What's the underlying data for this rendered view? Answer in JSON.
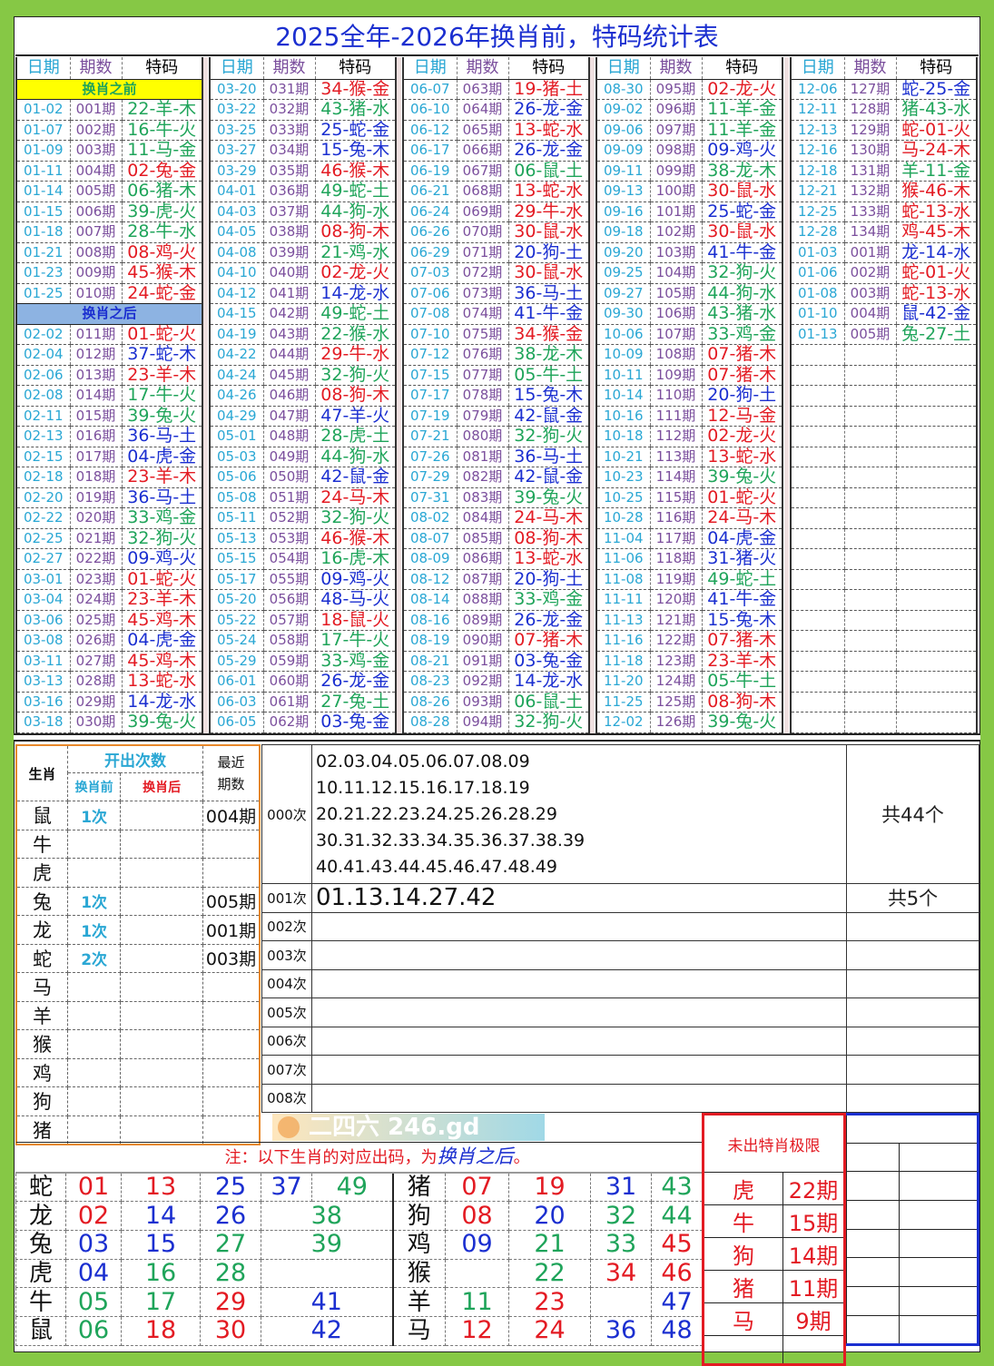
{
  "title": "2025全年-2026年换肖前，特码统计表",
  "headers": {
    "date": "日期",
    "period": "期数",
    "code": "特码"
  },
  "colors": {
    "red": "#e31b23",
    "blue": "#1b2fd0",
    "green": "#1fa45a",
    "banner_before": "#ffff00",
    "banner_after": "#8db3e2"
  },
  "groups": [
    [
      {
        "banner": "换肖之前",
        "type": "before"
      },
      [
        "01-02",
        "001期",
        "22-羊-木"
      ],
      [
        "01-07",
        "002期",
        "16-牛-火"
      ],
      [
        "01-09",
        "003期",
        "11-马-金"
      ],
      [
        "01-11",
        "004期",
        "02-兔-金"
      ],
      [
        "01-14",
        "005期",
        "06-猪-木"
      ],
      [
        "01-15",
        "006期",
        "39-虎-火"
      ],
      [
        "01-18",
        "007期",
        "28-牛-水"
      ],
      [
        "01-21",
        "008期",
        "08-鸡-火"
      ],
      [
        "01-23",
        "009期",
        "45-猴-木"
      ],
      [
        "01-25",
        "010期",
        "24-蛇-金"
      ],
      {
        "banner": "换肖之后",
        "type": "after"
      },
      [
        "02-02",
        "011期",
        "01-蛇-火"
      ],
      [
        "02-04",
        "012期",
        "37-蛇-木"
      ],
      [
        "02-06",
        "013期",
        "23-羊-木"
      ],
      [
        "02-08",
        "014期",
        "17-牛-火"
      ],
      [
        "02-11",
        "015期",
        "39-兔-火"
      ],
      [
        "02-13",
        "016期",
        "36-马-土"
      ],
      [
        "02-15",
        "017期",
        "04-虎-金"
      ],
      [
        "02-18",
        "018期",
        "23-羊-木"
      ],
      [
        "02-20",
        "019期",
        "36-马-土"
      ],
      [
        "02-22",
        "020期",
        "33-鸡-金"
      ],
      [
        "02-25",
        "021期",
        "32-狗-火"
      ],
      [
        "02-27",
        "022期",
        "09-鸡-火"
      ],
      [
        "03-01",
        "023期",
        "01-蛇-火"
      ],
      [
        "03-04",
        "024期",
        "23-羊-木"
      ],
      [
        "03-06",
        "025期",
        "45-鸡-木"
      ],
      [
        "03-08",
        "026期",
        "04-虎-金"
      ],
      [
        "03-11",
        "027期",
        "45-鸡-木"
      ],
      [
        "03-13",
        "028期",
        "13-蛇-水"
      ],
      [
        "03-16",
        "029期",
        "14-龙-水"
      ],
      [
        "03-18",
        "030期",
        "39-兔-火"
      ]
    ],
    [
      [
        "03-20",
        "031期",
        "34-猴-金"
      ],
      [
        "03-22",
        "032期",
        "43-猪-水"
      ],
      [
        "03-25",
        "033期",
        "25-蛇-金"
      ],
      [
        "03-27",
        "034期",
        "15-兔-木"
      ],
      [
        "03-29",
        "035期",
        "46-猴-木"
      ],
      [
        "04-01",
        "036期",
        "49-蛇-土"
      ],
      [
        "04-03",
        "037期",
        "44-狗-水"
      ],
      [
        "04-05",
        "038期",
        "08-狗-木"
      ],
      [
        "04-08",
        "039期",
        "21-鸡-水"
      ],
      [
        "04-10",
        "040期",
        "02-龙-火"
      ],
      [
        "04-12",
        "041期",
        "14-龙-水"
      ],
      [
        "04-15",
        "042期",
        "49-蛇-土"
      ],
      [
        "04-19",
        "043期",
        "22-猴-水"
      ],
      [
        "04-22",
        "044期",
        "29-牛-水"
      ],
      [
        "04-24",
        "045期",
        "32-狗-火"
      ],
      [
        "04-26",
        "046期",
        "08-狗-木"
      ],
      [
        "04-29",
        "047期",
        "47-羊-火"
      ],
      [
        "05-01",
        "048期",
        "28-虎-土"
      ],
      [
        "05-03",
        "049期",
        "44-狗-水"
      ],
      [
        "05-06",
        "050期",
        "42-鼠-金"
      ],
      [
        "05-08",
        "051期",
        "24-马-木"
      ],
      [
        "05-11",
        "052期",
        "32-狗-火"
      ],
      [
        "05-13",
        "053期",
        "46-猴-木"
      ],
      [
        "05-15",
        "054期",
        "16-虎-木"
      ],
      [
        "05-17",
        "055期",
        "09-鸡-火"
      ],
      [
        "05-20",
        "056期",
        "48-马-火"
      ],
      [
        "05-22",
        "057期",
        "18-鼠-火"
      ],
      [
        "05-24",
        "058期",
        "17-牛-火"
      ],
      [
        "05-29",
        "059期",
        "33-鸡-金"
      ],
      [
        "06-01",
        "060期",
        "26-龙-金"
      ],
      [
        "06-03",
        "061期",
        "27-兔-土"
      ],
      [
        "06-05",
        "062期",
        "03-兔-金"
      ]
    ],
    [
      [
        "06-07",
        "063期",
        "19-猪-土"
      ],
      [
        "06-10",
        "064期",
        "26-龙-金"
      ],
      [
        "06-12",
        "065期",
        "13-蛇-水"
      ],
      [
        "06-17",
        "066期",
        "26-龙-金"
      ],
      [
        "06-19",
        "067期",
        "06-鼠-土"
      ],
      [
        "06-21",
        "068期",
        "13-蛇-水"
      ],
      [
        "06-24",
        "069期",
        "29-牛-水"
      ],
      [
        "06-26",
        "070期",
        "30-鼠-水"
      ],
      [
        "06-29",
        "071期",
        "20-狗-土"
      ],
      [
        "07-03",
        "072期",
        "30-鼠-水"
      ],
      [
        "07-06",
        "073期",
        "36-马-土"
      ],
      [
        "07-08",
        "074期",
        "41-牛-金"
      ],
      [
        "07-10",
        "075期",
        "34-猴-金"
      ],
      [
        "07-12",
        "076期",
        "38-龙-木"
      ],
      [
        "07-15",
        "077期",
        "05-牛-土"
      ],
      [
        "07-17",
        "078期",
        "15-兔-木"
      ],
      [
        "07-19",
        "079期",
        "42-鼠-金"
      ],
      [
        "07-21",
        "080期",
        "32-狗-火"
      ],
      [
        "07-26",
        "081期",
        "36-马-土"
      ],
      [
        "07-29",
        "082期",
        "42-鼠-金"
      ],
      [
        "07-31",
        "083期",
        "39-兔-火"
      ],
      [
        "08-02",
        "084期",
        "24-马-木"
      ],
      [
        "08-07",
        "085期",
        "08-狗-木"
      ],
      [
        "08-09",
        "086期",
        "13-蛇-水"
      ],
      [
        "08-12",
        "087期",
        "20-狗-土"
      ],
      [
        "08-14",
        "088期",
        "33-鸡-金"
      ],
      [
        "08-16",
        "089期",
        "26-龙-金"
      ],
      [
        "08-19",
        "090期",
        "07-猪-木"
      ],
      [
        "08-21",
        "091期",
        "03-兔-金"
      ],
      [
        "08-23",
        "092期",
        "14-龙-水"
      ],
      [
        "08-26",
        "093期",
        "06-鼠-土"
      ],
      [
        "08-28",
        "094期",
        "32-狗-火"
      ]
    ],
    [
      [
        "08-30",
        "095期",
        "02-龙-火"
      ],
      [
        "09-02",
        "096期",
        "11-羊-金"
      ],
      [
        "09-06",
        "097期",
        "11-羊-金"
      ],
      [
        "09-09",
        "098期",
        "09-鸡-火"
      ],
      [
        "09-11",
        "099期",
        "38-龙-木"
      ],
      [
        "09-13",
        "100期",
        "30-鼠-水"
      ],
      [
        "09-16",
        "101期",
        "25-蛇-金"
      ],
      [
        "09-18",
        "102期",
        "30-鼠-水"
      ],
      [
        "09-20",
        "103期",
        "41-牛-金"
      ],
      [
        "09-25",
        "104期",
        "32-狗-火"
      ],
      [
        "09-27",
        "105期",
        "44-狗-水"
      ],
      [
        "09-30",
        "106期",
        "43-猪-水"
      ],
      [
        "10-06",
        "107期",
        "33-鸡-金"
      ],
      [
        "10-09",
        "108期",
        "07-猪-木"
      ],
      [
        "10-11",
        "109期",
        "07-猪-木"
      ],
      [
        "10-14",
        "110期",
        "20-狗-土"
      ],
      [
        "10-16",
        "111期",
        "12-马-金"
      ],
      [
        "10-18",
        "112期",
        "02-龙-火"
      ],
      [
        "10-21",
        "113期",
        "13-蛇-水"
      ],
      [
        "10-23",
        "114期",
        "39-兔-火"
      ],
      [
        "10-25",
        "115期",
        "01-蛇-火"
      ],
      [
        "10-28",
        "116期",
        "24-马-木"
      ],
      [
        "11-04",
        "117期",
        "04-虎-金"
      ],
      [
        "11-06",
        "118期",
        "31-猪-火"
      ],
      [
        "11-08",
        "119期",
        "49-蛇-土"
      ],
      [
        "11-11",
        "120期",
        "41-牛-金"
      ],
      [
        "11-13",
        "121期",
        "15-兔-木"
      ],
      [
        "11-16",
        "122期",
        "07-猪-木"
      ],
      [
        "11-18",
        "123期",
        "23-羊-木"
      ],
      [
        "11-20",
        "124期",
        "05-牛-土"
      ],
      [
        "11-25",
        "125期",
        "08-狗-木"
      ],
      [
        "12-02",
        "126期",
        "39-兔-火"
      ]
    ],
    [
      [
        "12-06",
        "127期",
        "蛇-25-金"
      ],
      [
        "12-11",
        "128期",
        "猪-43-水"
      ],
      [
        "12-13",
        "129期",
        "蛇-01-火"
      ],
      [
        "12-16",
        "130期",
        "马-24-木"
      ],
      [
        "12-18",
        "131期",
        "羊-11-金"
      ],
      [
        "12-21",
        "132期",
        "猴-46-木"
      ],
      [
        "12-25",
        "133期",
        "蛇-13-水"
      ],
      [
        "12-28",
        "134期",
        "鸡-45-木"
      ],
      [
        "01-03",
        "001期",
        "龙-14-水"
      ],
      [
        "01-06",
        "002期",
        "蛇-01-火"
      ],
      [
        "01-08",
        "003期",
        "蛇-13-水"
      ],
      [
        "01-10",
        "004期",
        "鼠-42-金"
      ],
      [
        "01-13",
        "005期",
        "兔-27-土"
      ]
    ]
  ],
  "zodiac_stats": {
    "header": {
      "zodiac": "生肖",
      "open_count": "开出次数",
      "before": "换肖前",
      "after": "换肖后",
      "recent": "最近\n期数"
    },
    "rows": [
      [
        "鼠",
        "1次",
        "",
        "004期"
      ],
      [
        "牛",
        "",
        "",
        ""
      ],
      [
        "虎",
        "",
        "",
        ""
      ],
      [
        "兔",
        "1次",
        "",
        "005期"
      ],
      [
        "龙",
        "1次",
        "",
        "001期"
      ],
      [
        "蛇",
        "2次",
        "",
        "003期"
      ],
      [
        "马",
        "",
        "",
        ""
      ],
      [
        "羊",
        "",
        "",
        ""
      ],
      [
        "猴",
        "",
        "",
        ""
      ],
      [
        "鸡",
        "",
        "",
        ""
      ],
      [
        "狗",
        "",
        "",
        ""
      ],
      [
        "猪",
        "",
        "",
        ""
      ]
    ]
  },
  "frequency": [
    {
      "key": "000次",
      "lines": [
        "02.03.04.05.06.07.08.09",
        "10.11.12.15.16.17.18.19",
        "20.21.22.23.24.25.26.28.29",
        "30.31.32.33.34.35.36.37.38.39",
        "40.41.43.44.45.46.47.48.49"
      ],
      "total": "共44个"
    },
    {
      "key": "001次",
      "lines": [
        "01.13.14.27.42"
      ],
      "total": "共5个"
    },
    {
      "key": "002次",
      "lines": [],
      "total": ""
    },
    {
      "key": "003次",
      "lines": [],
      "total": ""
    },
    {
      "key": "004次",
      "lines": [],
      "total": ""
    },
    {
      "key": "005次",
      "lines": [],
      "total": ""
    },
    {
      "key": "006次",
      "lines": [],
      "total": ""
    },
    {
      "key": "007次",
      "lines": [],
      "total": ""
    },
    {
      "key": "008次",
      "lines": [],
      "total": ""
    }
  ],
  "note": {
    "prefix": "注：以下生肖的对应出码，为",
    "highlight": "换肖之后",
    "suffix": "。"
  },
  "zodiac_numbers_left": [
    {
      "z": "蛇",
      "n": [
        "01",
        "13",
        "25",
        "37",
        "49"
      ]
    },
    {
      "z": "龙",
      "n": [
        "02",
        "14",
        "26",
        "38"
      ]
    },
    {
      "z": "兔",
      "n": [
        "03",
        "15",
        "27",
        "39"
      ]
    },
    {
      "z": "虎",
      "n": [
        "04",
        "16",
        "28",
        ""
      ]
    },
    {
      "z": "牛",
      "n": [
        "05",
        "17",
        "29",
        "41"
      ]
    },
    {
      "z": "鼠",
      "n": [
        "06",
        "18",
        "30",
        "42"
      ]
    }
  ],
  "zodiac_numbers_right": [
    {
      "z": "猪",
      "n": [
        "07",
        "19",
        "31",
        "43"
      ]
    },
    {
      "z": "狗",
      "n": [
        "08",
        "20",
        "32",
        "44"
      ]
    },
    {
      "z": "鸡",
      "n": [
        "09",
        "21",
        "33",
        "45"
      ]
    },
    {
      "z": "猴",
      "n": [
        "",
        "22",
        "34",
        "46"
      ]
    },
    {
      "z": "羊",
      "n": [
        "11",
        "23",
        "",
        "47"
      ]
    },
    {
      "z": "马",
      "n": [
        "12",
        "24",
        "36",
        "48"
      ]
    }
  ],
  "missing_limit": {
    "title": "未出特肖极限",
    "rows": [
      [
        "虎",
        "22期"
      ],
      [
        "牛",
        "15期"
      ],
      [
        "狗",
        "14期"
      ],
      [
        "猪",
        "11期"
      ],
      [
        "马",
        "9期"
      ],
      [
        "",
        ""
      ]
    ]
  },
  "watermark": "二四六 246.gd"
}
